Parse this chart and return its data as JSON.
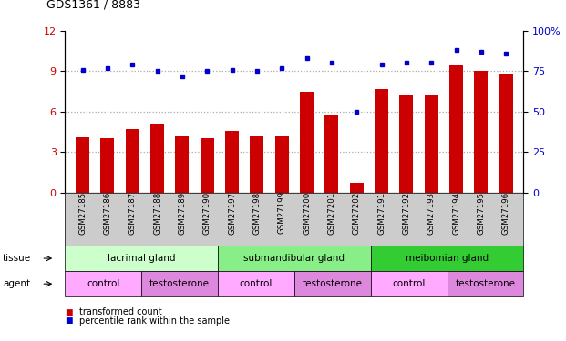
{
  "title": "GDS1361 / 8883",
  "samples": [
    "GSM27185",
    "GSM27186",
    "GSM27187",
    "GSM27188",
    "GSM27189",
    "GSM27190",
    "GSM27197",
    "GSM27198",
    "GSM27199",
    "GSM27200",
    "GSM27201",
    "GSM27202",
    "GSM27191",
    "GSM27192",
    "GSM27193",
    "GSM27194",
    "GSM27195",
    "GSM27196"
  ],
  "bar_values": [
    4.1,
    4.05,
    4.7,
    5.1,
    4.15,
    4.05,
    4.6,
    4.2,
    4.2,
    7.5,
    5.7,
    0.7,
    7.7,
    7.25,
    7.25,
    9.4,
    9.05,
    8.85
  ],
  "dot_values": [
    76,
    77,
    79,
    75,
    72,
    75,
    76,
    75,
    77,
    83,
    80,
    50,
    79,
    80,
    80,
    88,
    87,
    86
  ],
  "bar_color": "#cc0000",
  "dot_color": "#0000cc",
  "ylim_left": [
    0,
    12
  ],
  "ylim_right": [
    0,
    100
  ],
  "yticks_left": [
    0,
    3,
    6,
    9,
    12
  ],
  "yticks_right": [
    0,
    25,
    50,
    75,
    100
  ],
  "tissue_groups": [
    {
      "label": "lacrimal gland",
      "start": 0,
      "end": 6,
      "color": "#ccffcc"
    },
    {
      "label": "submandibular gland",
      "start": 6,
      "end": 12,
      "color": "#88ee88"
    },
    {
      "label": "meibomian gland",
      "start": 12,
      "end": 18,
      "color": "#33cc33"
    }
  ],
  "agent_groups": [
    {
      "label": "control",
      "start": 0,
      "end": 3,
      "color": "#ffaaff"
    },
    {
      "label": "testosterone",
      "start": 3,
      "end": 6,
      "color": "#dd88dd"
    },
    {
      "label": "control",
      "start": 6,
      "end": 9,
      "color": "#ffaaff"
    },
    {
      "label": "testosterone",
      "start": 9,
      "end": 12,
      "color": "#dd88dd"
    },
    {
      "label": "control",
      "start": 12,
      "end": 15,
      "color": "#ffaaff"
    },
    {
      "label": "testosterone",
      "start": 15,
      "end": 18,
      "color": "#dd88dd"
    }
  ],
  "legend_items": [
    {
      "label": "transformed count",
      "color": "#cc0000"
    },
    {
      "label": "percentile rank within the sample",
      "color": "#0000cc"
    }
  ],
  "tissue_label": "tissue",
  "agent_label": "agent",
  "dotted_line_color": "#aaaaaa",
  "xtick_bg_color": "#cccccc"
}
